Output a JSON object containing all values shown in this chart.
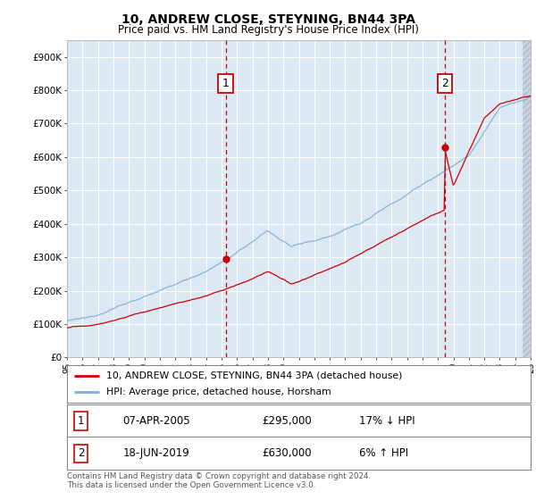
{
  "title": "10, ANDREW CLOSE, STEYNING, BN44 3PA",
  "subtitle": "Price paid vs. HM Land Registry's House Price Index (HPI)",
  "background_color": "#dce9f5",
  "fig_bg_color": "#ffffff",
  "ylim": [
    0,
    950000
  ],
  "yticks": [
    0,
    100000,
    200000,
    300000,
    400000,
    500000,
    600000,
    700000,
    800000,
    900000
  ],
  "ytick_labels": [
    "£0",
    "£100K",
    "£200K",
    "£300K",
    "£400K",
    "£500K",
    "£600K",
    "£700K",
    "£800K",
    "£900K"
  ],
  "sale1_x": 2005.27,
  "sale1_y": 295000,
  "sale2_x": 2019.46,
  "sale2_y": 630000,
  "legend_line1": "10, ANDREW CLOSE, STEYNING, BN44 3PA (detached house)",
  "legend_line2": "HPI: Average price, detached house, Horsham",
  "table_row1_num": "1",
  "table_row1_date": "07-APR-2005",
  "table_row1_price": "£295,000",
  "table_row1_hpi": "17% ↓ HPI",
  "table_row2_num": "2",
  "table_row2_date": "18-JUN-2019",
  "table_row2_price": "£630,000",
  "table_row2_hpi": "6% ↑ HPI",
  "footnote": "Contains HM Land Registry data © Crown copyright and database right 2024.\nThis data is licensed under the Open Government Licence v3.0.",
  "sale_color": "#cc0000",
  "hpi_color": "#7ab0d4",
  "vline_color": "#cc0000",
  "grid_color": "#ffffff",
  "xlim_start": 1995.5,
  "xlim_end": 2025.0
}
